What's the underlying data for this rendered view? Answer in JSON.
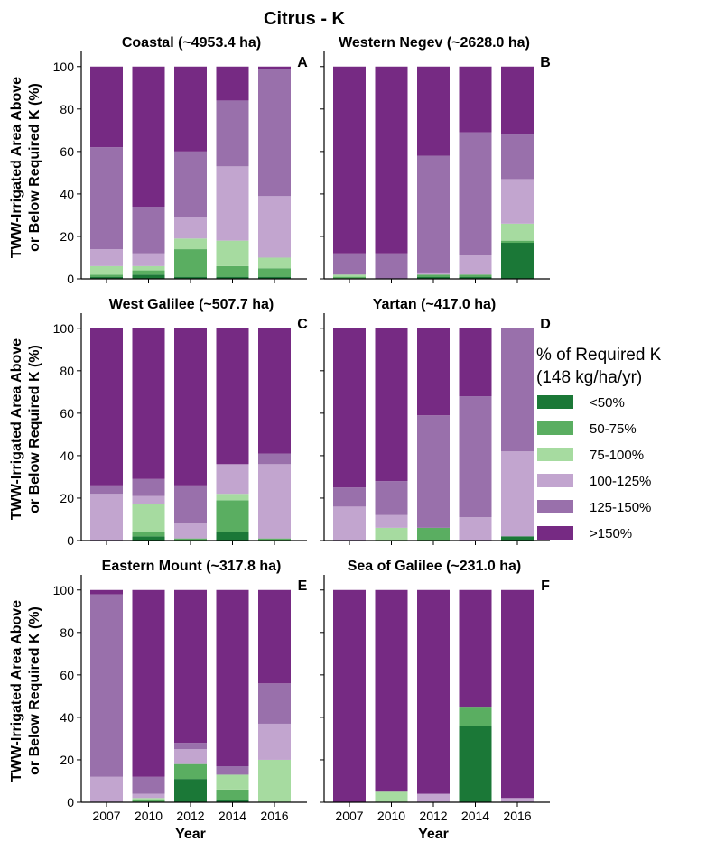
{
  "figure_title": "Citrus - K",
  "colors": {
    "<50%": "#1b7837",
    "50-75%": "#5aae61",
    "75-100%": "#a6dba0",
    "100-125%": "#c2a5cf",
    "125-150%": "#9970ab",
    ">150%": "#762a83"
  },
  "chart_data": [
    {
      "type": "bar",
      "stacked": true,
      "panel": "A",
      "title": "Coastal (~4953.4 ha)",
      "xlabel": "",
      "ylabel": "TWW-Irrigated Area Above or Below Required K (%)",
      "ylim": [
        0,
        105
      ],
      "categories": [
        "2007",
        "2010",
        "2012",
        "2014",
        "2016"
      ],
      "series": [
        {
          "name": "<50%",
          "values": [
            1,
            2,
            1,
            1,
            1
          ]
        },
        {
          "name": "50-75%",
          "values": [
            1,
            2,
            13,
            5,
            4
          ]
        },
        {
          "name": "75-100%",
          "values": [
            4,
            2,
            5,
            12,
            5
          ]
        },
        {
          "name": "100-125%",
          "values": [
            8,
            6,
            10,
            35,
            29
          ]
        },
        {
          "name": "125-150%",
          "values": [
            48,
            22,
            31,
            31,
            60
          ]
        },
        {
          "name": ">150%",
          "values": [
            38,
            66,
            40,
            16,
            1
          ]
        }
      ]
    },
    {
      "type": "bar",
      "stacked": true,
      "panel": "B",
      "title": "Western Negev (~2628.0 ha)",
      "xlabel": "",
      "ylabel": "",
      "ylim": [
        0,
        105
      ],
      "categories": [
        "2007",
        "2010",
        "2012",
        "2014",
        "2016"
      ],
      "series": [
        {
          "name": "<50%",
          "values": [
            0,
            0,
            1,
            1,
            17
          ]
        },
        {
          "name": "50-75%",
          "values": [
            1,
            0,
            1,
            1,
            1
          ]
        },
        {
          "name": "75-100%",
          "values": [
            1,
            0,
            0,
            0,
            8
          ]
        },
        {
          "name": "100-125%",
          "values": [
            0,
            0,
            1,
            9,
            21
          ]
        },
        {
          "name": "125-150%",
          "values": [
            10,
            12,
            55,
            58,
            21
          ]
        },
        {
          "name": ">150%",
          "values": [
            88,
            88,
            42,
            31,
            32
          ]
        }
      ]
    },
    {
      "type": "bar",
      "stacked": true,
      "panel": "C",
      "title": "West Galilee (~507.7 ha)",
      "xlabel": "",
      "ylabel": "TWW-Irrigated Area Above or Below Required K (%)",
      "ylim": [
        0,
        105
      ],
      "categories": [
        "2007",
        "2010",
        "2012",
        "2014",
        "2016"
      ],
      "series": [
        {
          "name": "<50%",
          "values": [
            0,
            2,
            0,
            4,
            0
          ]
        },
        {
          "name": "50-75%",
          "values": [
            0,
            2,
            1,
            15,
            1
          ]
        },
        {
          "name": "75-100%",
          "values": [
            0,
            13,
            0,
            3,
            0
          ]
        },
        {
          "name": "100-125%",
          "values": [
            22,
            4,
            7,
            14,
            35
          ]
        },
        {
          "name": "125-150%",
          "values": [
            4,
            8,
            18,
            0,
            5
          ]
        },
        {
          "name": ">150%",
          "values": [
            74,
            71,
            74,
            64,
            59
          ]
        }
      ]
    },
    {
      "type": "bar",
      "stacked": true,
      "panel": "D",
      "title": "Yartan (~417.0 ha)",
      "xlabel": "",
      "ylabel": "",
      "ylim": [
        0,
        105
      ],
      "categories": [
        "2007",
        "2010",
        "2012",
        "2014",
        "2016"
      ],
      "series": [
        {
          "name": "<50%",
          "values": [
            0,
            0,
            0,
            0,
            2
          ]
        },
        {
          "name": "50-75%",
          "values": [
            0,
            0,
            6,
            0,
            0
          ]
        },
        {
          "name": "75-100%",
          "values": [
            0,
            6,
            0,
            0,
            0
          ]
        },
        {
          "name": "100-125%",
          "values": [
            16,
            6,
            0,
            11,
            40
          ]
        },
        {
          "name": "125-150%",
          "values": [
            9,
            16,
            53,
            57,
            58
          ]
        },
        {
          "name": ">150%",
          "values": [
            75,
            72,
            41,
            32,
            0
          ]
        }
      ]
    },
    {
      "type": "bar",
      "stacked": true,
      "panel": "E",
      "title": "Eastern Mount (~317.8 ha)",
      "xlabel": "Year",
      "ylabel": "TWW-Irrigated Area Above or Below Required K (%)",
      "ylim": [
        0,
        105
      ],
      "categories": [
        "2007",
        "2010",
        "2012",
        "2014",
        "2016"
      ],
      "series": [
        {
          "name": "<50%",
          "values": [
            0,
            0,
            11,
            1,
            0
          ]
        },
        {
          "name": "50-75%",
          "values": [
            0,
            1,
            7,
            5,
            0
          ]
        },
        {
          "name": "75-100%",
          "values": [
            0,
            1,
            0,
            7,
            20
          ]
        },
        {
          "name": "100-125%",
          "values": [
            12,
            2,
            7,
            0,
            17
          ]
        },
        {
          "name": "125-150%",
          "values": [
            86,
            8,
            3,
            4,
            19
          ]
        },
        {
          "name": ">150%",
          "values": [
            2,
            88,
            72,
            83,
            44
          ]
        }
      ]
    },
    {
      "type": "bar",
      "stacked": true,
      "panel": "F",
      "title": "Sea of Galilee (~231.0 ha)",
      "xlabel": "Year",
      "ylabel": "",
      "ylim": [
        0,
        105
      ],
      "categories": [
        "2007",
        "2010",
        "2012",
        "2014",
        "2016"
      ],
      "series": [
        {
          "name": "<50%",
          "values": [
            0,
            0,
            0,
            36,
            0
          ]
        },
        {
          "name": "50-75%",
          "values": [
            0,
            0,
            0,
            9,
            0
          ]
        },
        {
          "name": "75-100%",
          "values": [
            0,
            5,
            0,
            0,
            0
          ]
        },
        {
          "name": "100-125%",
          "values": [
            0,
            0,
            4,
            0,
            2
          ]
        },
        {
          "name": "125-150%",
          "values": [
            0,
            0,
            0,
            0,
            0
          ]
        },
        {
          "name": ">150%",
          "values": [
            100,
            95,
            96,
            55,
            98
          ]
        }
      ]
    }
  ],
  "legend": {
    "title_line1": "% of Required K",
    "title_line2": "(148 kg/ha/yr)",
    "entries": [
      "<50%",
      "50-75%",
      "75-100%",
      "100-125%",
      "125-150%",
      ">150%"
    ]
  }
}
